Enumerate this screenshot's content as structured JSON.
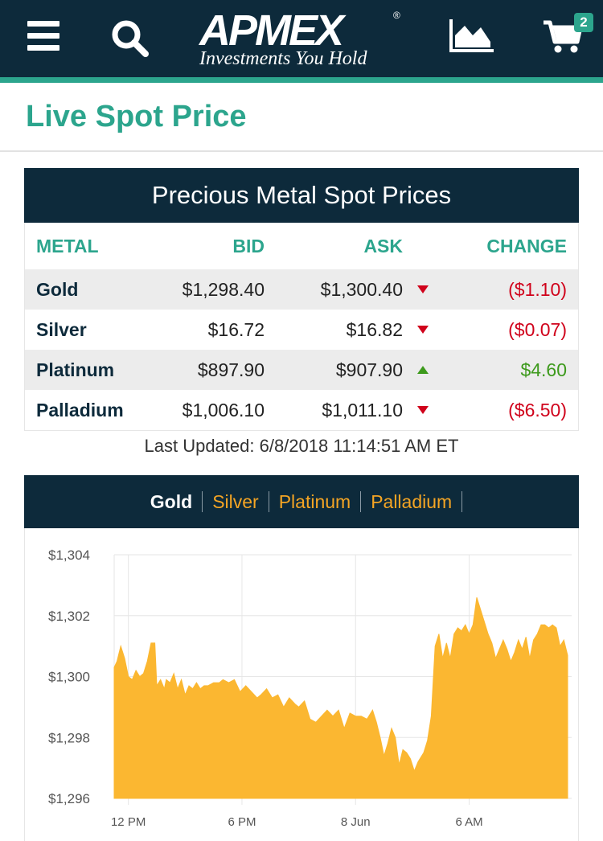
{
  "header": {
    "logo_text": "APMEX",
    "logo_reg": "®",
    "logo_tagline": "Investments You Hold",
    "cart_count": "2",
    "menu_icon": "hamburger-menu-icon",
    "search_icon": "search-icon",
    "chart_icon": "area-chart-icon",
    "cart_icon": "shopping-cart-icon"
  },
  "page": {
    "title": "Live Spot Price"
  },
  "spot_table": {
    "title": "Precious Metal Spot Prices",
    "columns": [
      "METAL",
      "BID",
      "ASK",
      "CHANGE"
    ],
    "rows": [
      {
        "metal": "Gold",
        "bid": "$1,298.40",
        "ask": "$1,300.40",
        "direction": "down",
        "change": "($1.10)"
      },
      {
        "metal": "Silver",
        "bid": "$16.72",
        "ask": "$16.82",
        "direction": "down",
        "change": "($0.07)"
      },
      {
        "metal": "Platinum",
        "bid": "$897.90",
        "ask": "$907.90",
        "direction": "up",
        "change": "$4.60"
      },
      {
        "metal": "Palladium",
        "bid": "$1,006.10",
        "ask": "$1,011.10",
        "direction": "down",
        "change": "($6.50)"
      }
    ],
    "last_updated": "Last Updated: 6/8/2018 11:14:51 AM ET"
  },
  "chart_tabs": [
    {
      "label": "Gold",
      "active": true
    },
    {
      "label": "Silver",
      "active": false
    },
    {
      "label": "Platinum",
      "active": false
    },
    {
      "label": "Palladium",
      "active": false
    }
  ],
  "colors": {
    "navy": "#0d2a3b",
    "teal": "#2ca58d",
    "down": "#d0021b",
    "up": "#3d9a1c",
    "area": "#fbb731",
    "tab_inactive": "#f5a524"
  },
  "chart_data": {
    "type": "area",
    "title": "",
    "xlabel": "",
    "ylabel": "",
    "ylim": [
      1296,
      1304
    ],
    "yticks": [
      "$1,304",
      "$1,302",
      "$1,300",
      "$1,298",
      "$1,296"
    ],
    "ytick_values": [
      1304,
      1302,
      1300,
      1298,
      1296
    ],
    "xticks": [
      "12 PM",
      "6 PM",
      "8 Jun",
      "6 AM"
    ],
    "xtick_hours": [
      0,
      6,
      12,
      18
    ],
    "xlim_hours": [
      -0.75,
      23.2
    ],
    "grid": true,
    "series": [
      {
        "x": [
          -0.75,
          -0.6,
          -0.4,
          -0.2,
          0.0,
          0.2,
          0.4,
          0.6,
          0.8,
          1.0,
          1.2,
          1.4,
          1.5,
          1.7,
          1.9,
          2.0,
          2.2,
          2.4,
          2.6,
          2.8,
          3.0,
          3.2,
          3.4,
          3.6,
          3.8,
          4.0,
          4.2,
          4.5,
          4.8,
          5.0,
          5.3,
          5.6,
          5.9,
          6.2,
          6.5,
          6.8,
          7.0,
          7.3,
          7.6,
          7.9,
          8.2,
          8.5,
          8.8,
          9.0,
          9.3,
          9.6,
          9.9,
          10.2,
          10.5,
          10.8,
          11.1,
          11.4,
          11.7,
          12.0,
          12.3,
          12.6,
          12.9,
          13.1,
          13.3,
          13.5,
          13.7,
          13.9,
          14.1,
          14.3,
          14.5,
          14.7,
          14.9,
          15.1,
          15.3,
          15.6,
          15.8,
          16.0,
          16.2,
          16.4,
          16.6,
          16.8,
          17.0,
          17.2,
          17.4,
          17.6,
          17.8,
          18.0,
          18.2,
          18.4,
          18.6,
          18.8,
          19.0,
          19.2,
          19.4,
          19.6,
          19.8,
          20.0,
          20.2,
          20.4,
          20.6,
          20.8,
          21.0,
          21.2,
          21.4,
          21.6,
          21.8,
          22.0,
          22.2,
          22.4,
          22.6,
          22.8,
          23.0,
          23.2
        ],
        "values": [
          1300.3,
          1300.5,
          1301.0,
          1300.6,
          1300.0,
          1299.9,
          1300.2,
          1300.0,
          1300.1,
          1300.5,
          1301.1,
          1301.1,
          1299.7,
          1299.9,
          1299.6,
          1299.9,
          1299.8,
          1300.1,
          1299.6,
          1299.9,
          1299.4,
          1299.7,
          1299.6,
          1299.8,
          1299.6,
          1299.7,
          1299.7,
          1299.8,
          1299.8,
          1299.9,
          1299.8,
          1299.9,
          1299.5,
          1299.7,
          1299.5,
          1299.3,
          1299.4,
          1299.6,
          1299.3,
          1299.4,
          1299.0,
          1299.3,
          1299.1,
          1299.0,
          1299.2,
          1298.6,
          1298.5,
          1298.7,
          1298.9,
          1298.7,
          1298.9,
          1298.3,
          1298.8,
          1298.7,
          1298.7,
          1298.6,
          1298.9,
          1298.5,
          1298.0,
          1297.4,
          1297.8,
          1298.3,
          1298.0,
          1297.1,
          1297.6,
          1297.5,
          1297.3,
          1296.9,
          1297.2,
          1297.5,
          1297.9,
          1298.7,
          1301.0,
          1301.4,
          1300.6,
          1301.1,
          1300.6,
          1301.4,
          1301.6,
          1301.5,
          1301.7,
          1301.4,
          1301.7,
          1302.6,
          1302.2,
          1301.8,
          1301.4,
          1301.1,
          1300.6,
          1300.9,
          1301.2,
          1300.9,
          1300.5,
          1300.8,
          1301.2,
          1300.9,
          1301.3,
          1300.6,
          1301.2,
          1301.4,
          1301.7,
          1301.7,
          1301.6,
          1301.7,
          1301.6,
          1301.0,
          1301.2,
          1300.7
        ]
      }
    ]
  }
}
